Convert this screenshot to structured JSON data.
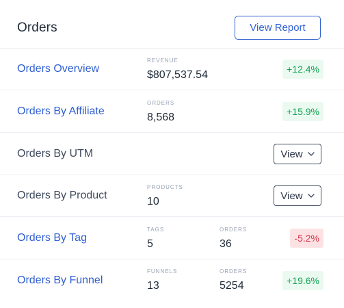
{
  "header": {
    "title": "Orders",
    "report_button": "View Report"
  },
  "rows": [
    {
      "title": "Orders Overview",
      "metrics": [
        {
          "label": "REVENUE",
          "value": "$807,537.54"
        }
      ],
      "badge": "+12.4%"
    },
    {
      "title": "Orders By Affiliate",
      "metrics": [
        {
          "label": "ORDERS",
          "value": "8,568"
        }
      ],
      "badge": "+15.9%"
    },
    {
      "title": "Orders By UTM",
      "select": "View"
    },
    {
      "title": "Orders By Product",
      "metrics": [
        {
          "label": "PRODUCTS",
          "value": "10"
        }
      ],
      "select": "View"
    },
    {
      "title": "Orders By Tag",
      "metrics": [
        {
          "label": "TAGS",
          "value": "5"
        },
        {
          "label": "ORDERS",
          "value": "36"
        }
      ],
      "badge": "-5.2%"
    },
    {
      "title": "Orders By Funnel",
      "metrics": [
        {
          "label": "FUNNELS",
          "value": "13"
        },
        {
          "label": "ORDERS",
          "value": "5254"
        }
      ],
      "badge": "+19.6%"
    }
  ],
  "colors": {
    "link": "#2f5fd0",
    "positive": "#12a150",
    "positive_bg": "#ebfaf1",
    "negative": "#d6344a",
    "negative_bg": "#fde2e4"
  },
  "icons": {
    "select_chevron": "chevron-down-icon"
  }
}
